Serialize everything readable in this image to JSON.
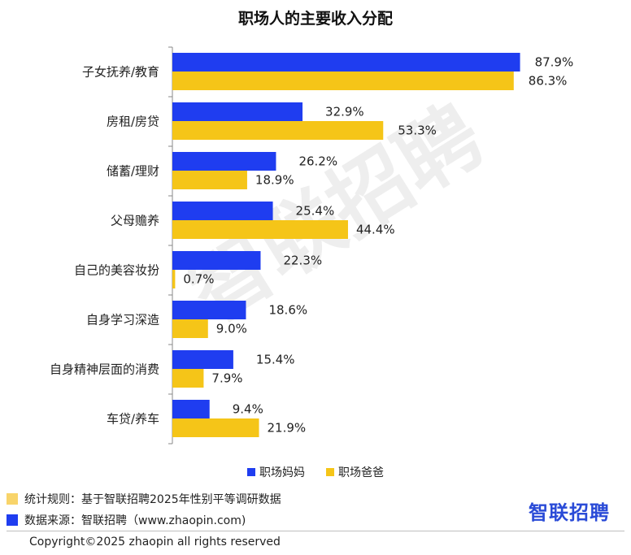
{
  "chart_data": {
    "type": "bar",
    "orientation": "horizontal",
    "title": "职场人的主要收入分配",
    "categories": [
      "子女抚养/教育",
      "房租/房贷",
      "储蓄/理财",
      "父母赡养",
      "自己的美容妆扮",
      "自身学习深造",
      "自身精神层面的消费",
      "车贷/养车"
    ],
    "series": [
      {
        "name": "职场妈妈",
        "color": "#1f3df0",
        "values": [
          87.9,
          32.9,
          26.2,
          25.4,
          22.3,
          18.6,
          15.4,
          9.4
        ]
      },
      {
        "name": "职场爸爸",
        "color": "#f5c518",
        "values": [
          86.3,
          53.3,
          18.9,
          44.4,
          0.7,
          9.0,
          7.9,
          21.9
        ]
      }
    ],
    "value_suffix": "%",
    "xlim": [
      0,
      100
    ],
    "legend_position": "bottom",
    "grid": false
  },
  "notes": {
    "rule": {
      "text": "统计规则：基于智联招聘2025年性别平等调研数据",
      "color": "#f8d46a"
    },
    "source": {
      "text": "数据来源：智联招聘（www.zhaopin.com)",
      "color": "#1f3df0"
    }
  },
  "brand": {
    "logo_text": "智联招聘",
    "watermark_text": "智联招聘"
  },
  "footer": {
    "copyright": "Copyright©2025 zhaopin all rights reserved"
  }
}
